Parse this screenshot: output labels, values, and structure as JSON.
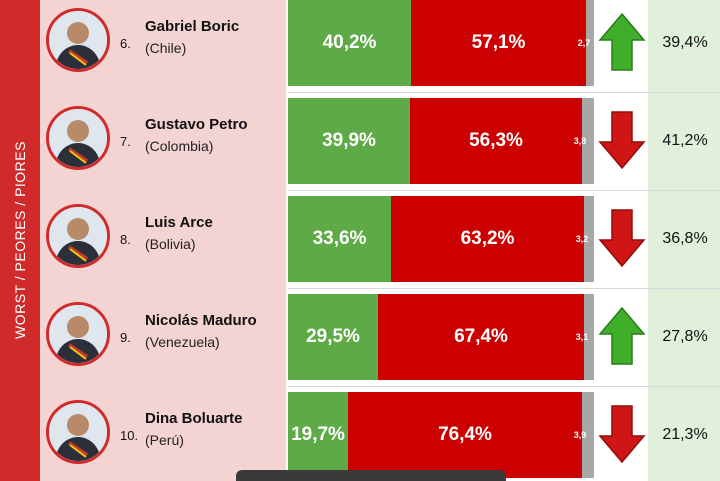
{
  "side_label": "WORST / PEORES / PIORES",
  "colors": {
    "approve": "#5eaa46",
    "disapprove": "#cc0000",
    "no_answer": "#a7a7a7",
    "arrow_up": "#3fae2a",
    "arrow_down": "#d01515"
  },
  "chart_data": {
    "type": "bar",
    "stacked": true,
    "orientation": "horizontal",
    "xlim": [
      0,
      100
    ],
    "categories": [
      "Gabriel Boric",
      "Gustavo Petro",
      "Luis Arce",
      "Nicolás Maduro",
      "Dina Boluarte"
    ],
    "series": [
      {
        "values": [
          40.2,
          39.9,
          33.6,
          29.5,
          19.7
        ]
      },
      {
        "values": [
          57.1,
          56.3,
          63.2,
          67.4,
          76.4
        ]
      },
      {
        "values": [
          2.7,
          3.8,
          3.2,
          3.1,
          3.9
        ]
      }
    ],
    "previous_values": [
      39.4,
      41.2,
      36.8,
      27.8,
      21.3
    ],
    "trend": [
      "up",
      "down",
      "down",
      "up",
      "down"
    ]
  },
  "rows": [
    {
      "rank": "6.",
      "name": "Gabriel Boric",
      "country": "(Chile)",
      "approve": "40,2%",
      "disapprove": "57,1%",
      "ns": "2,7",
      "prev": "39,4%",
      "trend_icon": "arrow-up-icon"
    },
    {
      "rank": "7.",
      "name": "Gustavo Petro",
      "country": "(Colombia)",
      "approve": "39,9%",
      "disapprove": "56,3%",
      "ns": "3,8",
      "prev": "41,2%",
      "trend_icon": "arrow-down-icon"
    },
    {
      "rank": "8.",
      "name": "Luis Arce",
      "country": "(Bolivia)",
      "approve": "33,6%",
      "disapprove": "63,2%",
      "ns": "3,2",
      "prev": "36,8%",
      "trend_icon": "arrow-down-icon"
    },
    {
      "rank": "9.",
      "name": "Nicolás Maduro",
      "country": "(Venezuela)",
      "approve": "29,5%",
      "disapprove": "67,4%",
      "ns": "3,1",
      "prev": "27,8%",
      "trend_icon": "arrow-up-icon"
    },
    {
      "rank": "10.",
      "name": "Dina Boluarte",
      "country": "(Perú)",
      "approve": "19,7%",
      "disapprove": "76,4%",
      "ns": "3,9",
      "prev": "21,3%",
      "trend_icon": "arrow-down-icon"
    }
  ]
}
